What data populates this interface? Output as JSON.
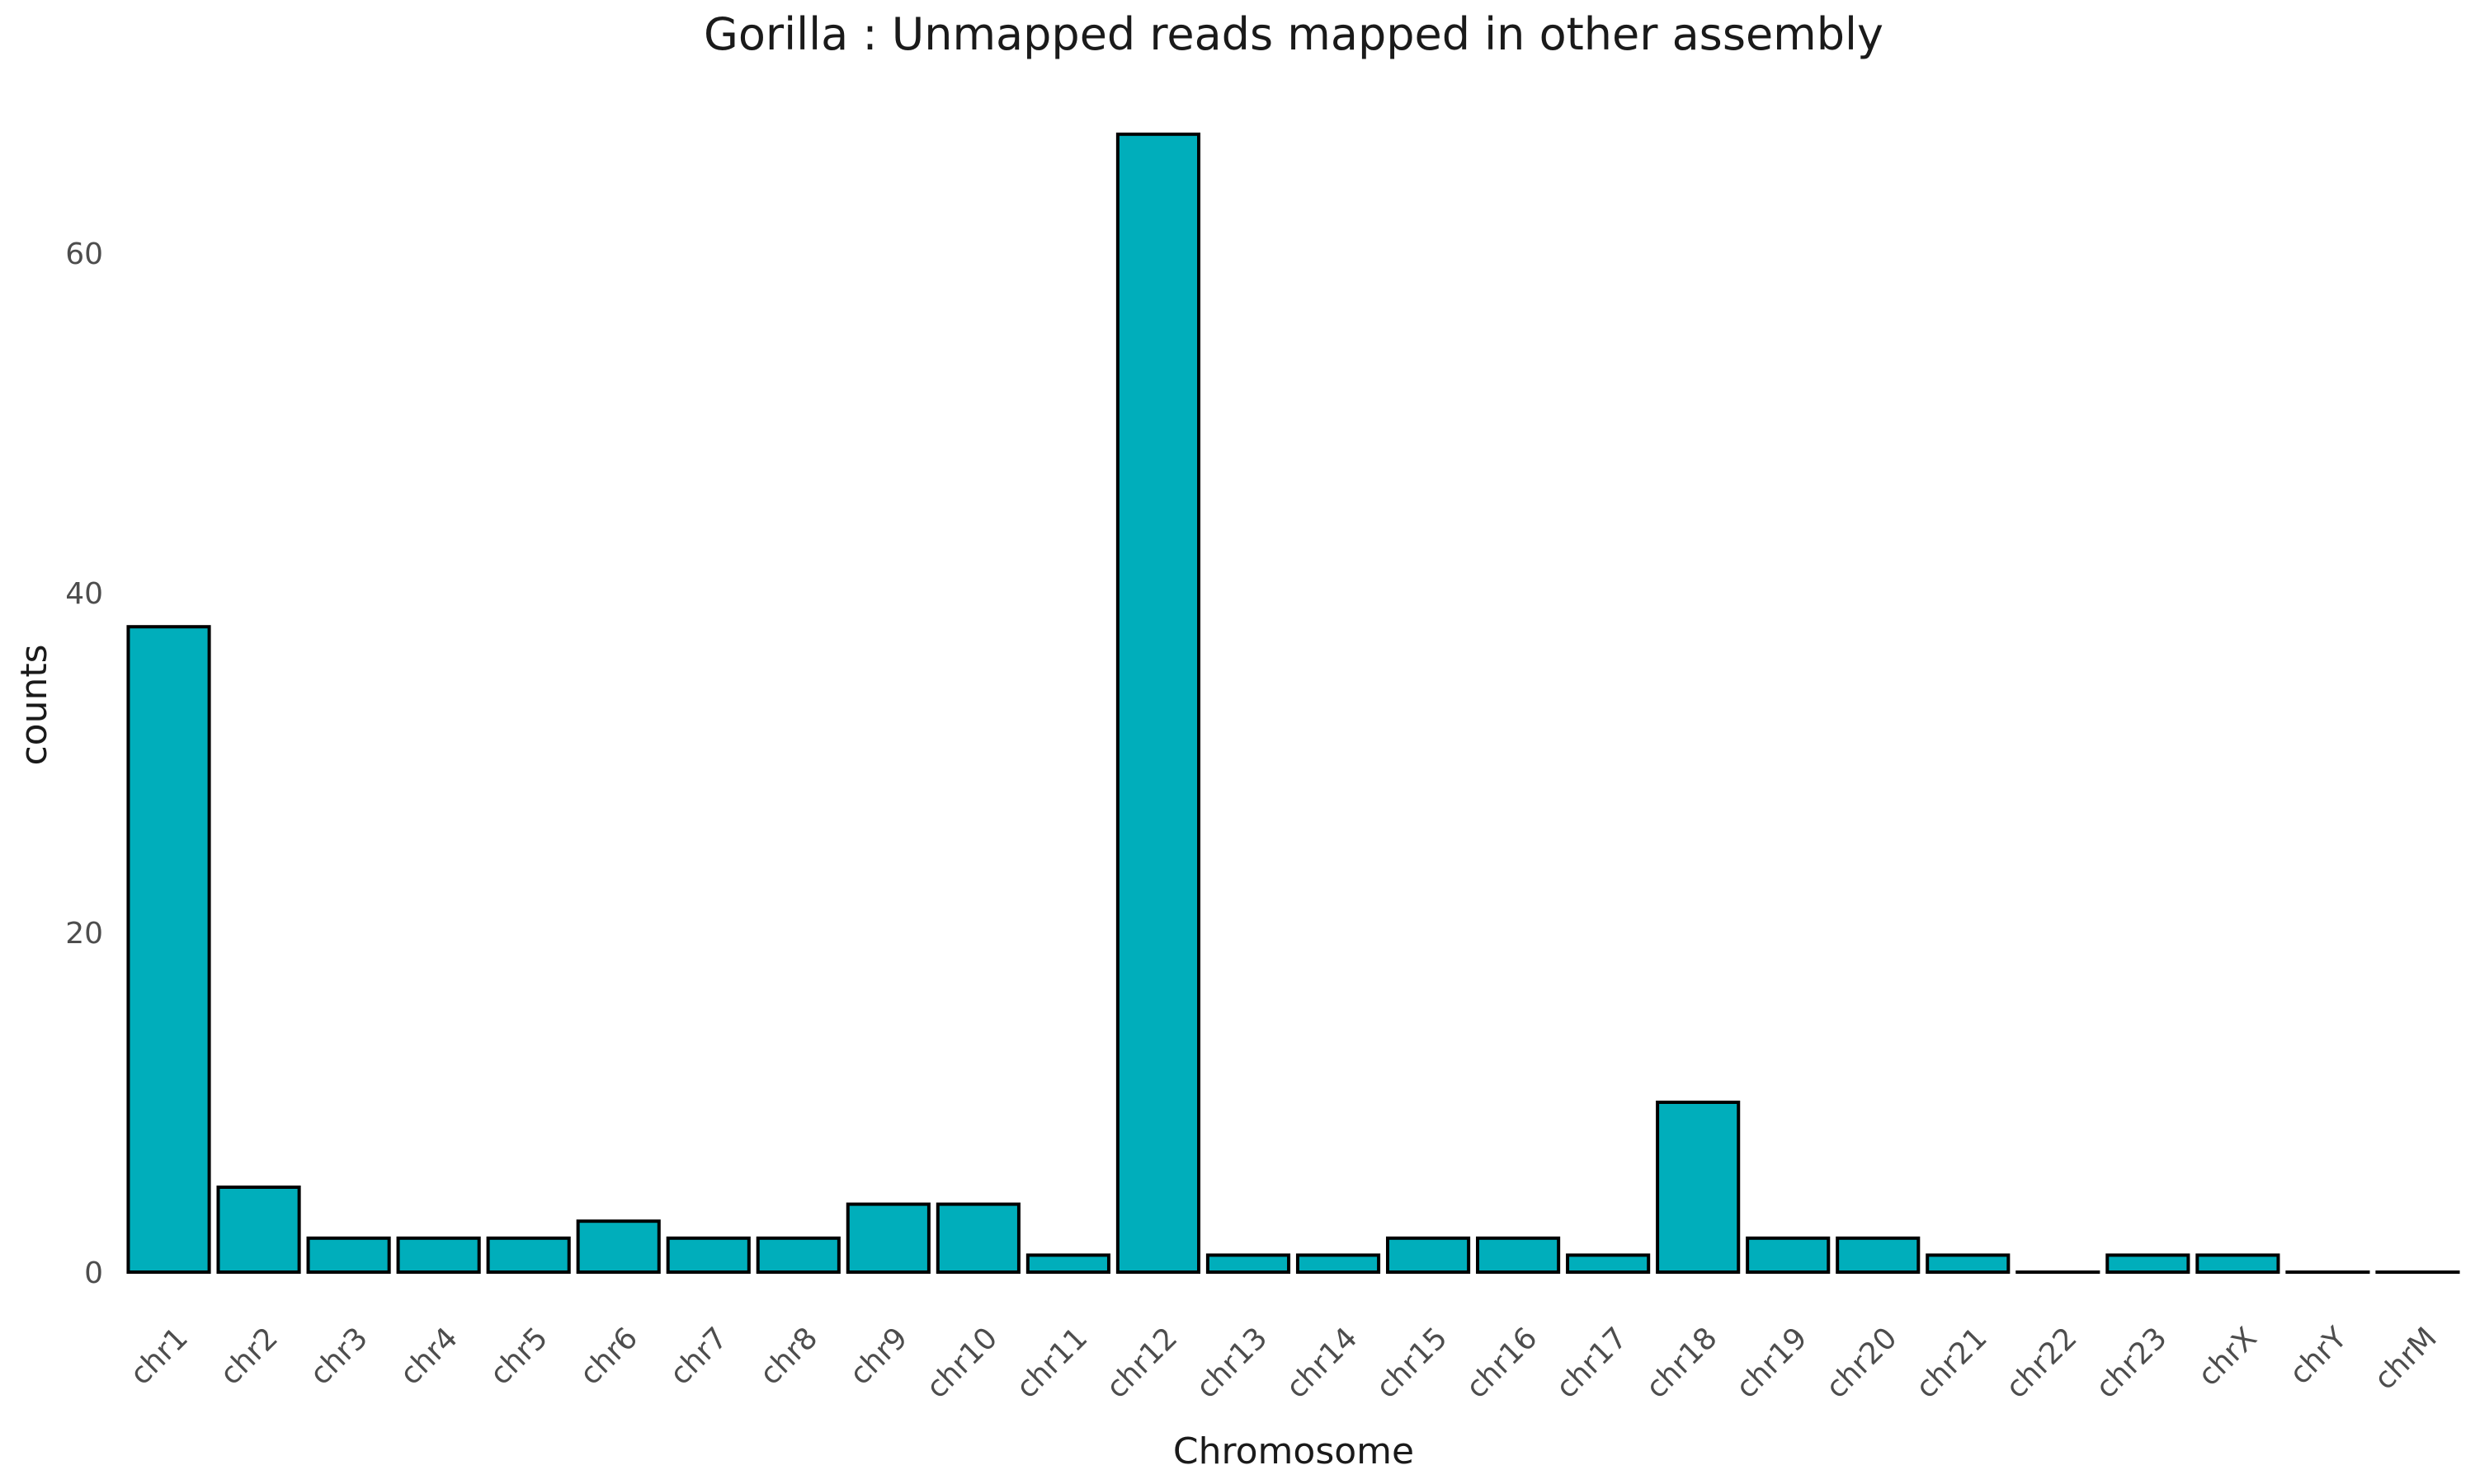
{
  "chart_data": {
    "type": "bar",
    "title": "Gorilla : Unmapped reads mapped in other assembly",
    "xlabel": "Chromosome",
    "ylabel": "counts",
    "categories": [
      "chr1",
      "chr2",
      "chr3",
      "chr4",
      "chr5",
      "chr6",
      "chr7",
      "chr8",
      "chr9",
      "chr10",
      "chr11",
      "chr12",
      "chr13",
      "chr14",
      "chr15",
      "chr16",
      "chr17",
      "chr18",
      "chr19",
      "chr20",
      "chr21",
      "chr22",
      "chr23",
      "chrX",
      "chrY",
      "chrM"
    ],
    "values": [
      38,
      5,
      2,
      2,
      2,
      3,
      2,
      2,
      4,
      4,
      1,
      67,
      1,
      1,
      2,
      2,
      1,
      10,
      2,
      2,
      1,
      0,
      1,
      1,
      0,
      0
    ],
    "yticks": [
      "0",
      "20",
      "40",
      "60"
    ],
    "ylim": [
      0,
      70
    ],
    "grid": false,
    "legend": "none",
    "bar_color": "#00AEBB",
    "edge_color": "#000000"
  }
}
